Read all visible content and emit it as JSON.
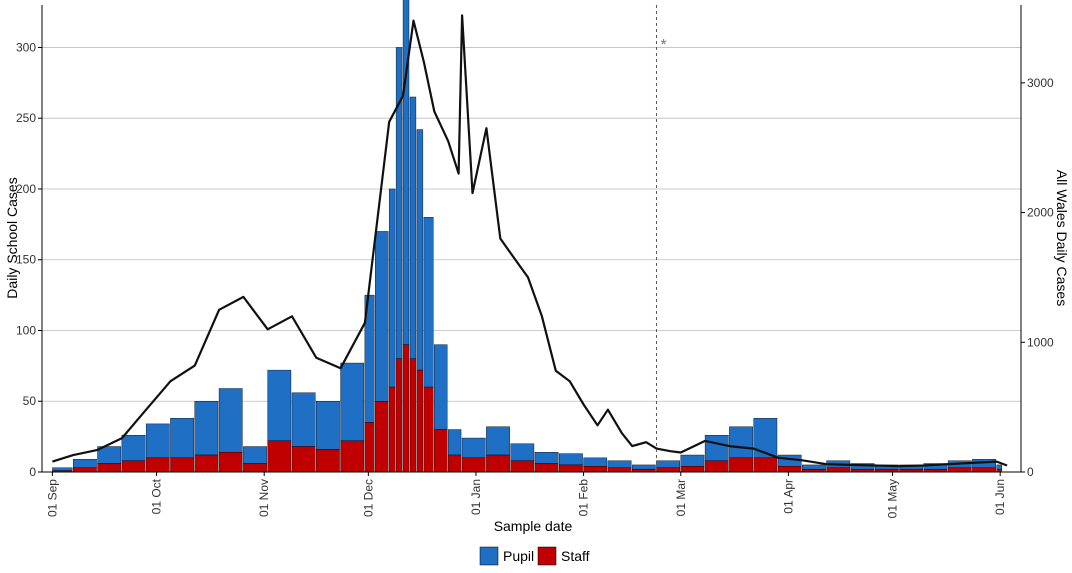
{
  "chart_data": {
    "type": "bar",
    "title": "",
    "xlabel": "Sample date",
    "ylabel": "Daily School Cases",
    "y2label": "All Wales Daily Cases",
    "x_range": [
      "2020-08-29",
      "2021-06-07"
    ],
    "ylim": [
      0,
      330
    ],
    "y2lim": [
      0,
      3600
    ],
    "x_ticks": [
      {
        "date": "2020-09-01",
        "label": "01 Sep"
      },
      {
        "date": "2020-10-01",
        "label": "01 Oct"
      },
      {
        "date": "2020-11-01",
        "label": "01 Nov"
      },
      {
        "date": "2020-12-01",
        "label": "01 Dec"
      },
      {
        "date": "2021-01-01",
        "label": "01 Jan"
      },
      {
        "date": "2021-02-01",
        "label": "01 Feb"
      },
      {
        "date": "2021-03-01",
        "label": "01 Mar"
      },
      {
        "date": "2021-04-01",
        "label": "01 Apr"
      },
      {
        "date": "2021-05-01",
        "label": "01 May"
      },
      {
        "date": "2021-06-01",
        "label": "01 Jun"
      }
    ],
    "y_ticks": [
      "0",
      "50",
      "100",
      "150",
      "200",
      "250",
      "300"
    ],
    "y2_ticks": [
      "0",
      "1000",
      "2000",
      "3000"
    ],
    "grid": "horizontal",
    "legend_position": "bottom",
    "colors": {
      "pupil": "#1f6fc4",
      "staff": "#c00000",
      "line": "#111111",
      "marker_line": "#555555",
      "grid": "#bdbdbd"
    },
    "annotations": [
      {
        "type": "vline",
        "date": "2021-02-22",
        "symbol": "*"
      }
    ],
    "series": [
      {
        "name": "Pupil",
        "kind": "bar-stacked",
        "points": [
          [
            "2020-09-01",
            2
          ],
          [
            "2020-09-07",
            6
          ],
          [
            "2020-09-14",
            12
          ],
          [
            "2020-09-21",
            18
          ],
          [
            "2020-09-28",
            24
          ],
          [
            "2020-10-05",
            28
          ],
          [
            "2020-10-12",
            38
          ],
          [
            "2020-10-19",
            45
          ],
          [
            "2020-10-26",
            12
          ],
          [
            "2020-11-02",
            50
          ],
          [
            "2020-11-09",
            38
          ],
          [
            "2020-11-16",
            34
          ],
          [
            "2020-11-23",
            55
          ],
          [
            "2020-11-30",
            90
          ],
          [
            "2020-12-03",
            120
          ],
          [
            "2020-12-07",
            140
          ],
          [
            "2020-12-09",
            220
          ],
          [
            "2020-12-11",
            310
          ],
          [
            "2020-12-13",
            185
          ],
          [
            "2020-12-15",
            170
          ],
          [
            "2020-12-17",
            120
          ],
          [
            "2020-12-20",
            60
          ],
          [
            "2020-12-24",
            18
          ],
          [
            "2020-12-28",
            14
          ],
          [
            "2021-01-04",
            20
          ],
          [
            "2021-01-11",
            12
          ],
          [
            "2021-01-18",
            8
          ],
          [
            "2021-01-25",
            8
          ],
          [
            "2021-02-01",
            6
          ],
          [
            "2021-02-08",
            5
          ],
          [
            "2021-02-15",
            3
          ],
          [
            "2021-02-22",
            5
          ],
          [
            "2021-03-01",
            8
          ],
          [
            "2021-03-08",
            18
          ],
          [
            "2021-03-15",
            22
          ],
          [
            "2021-03-22",
            28
          ],
          [
            "2021-03-29",
            8
          ],
          [
            "2021-04-05",
            3
          ],
          [
            "2021-04-12",
            5
          ],
          [
            "2021-04-19",
            4
          ],
          [
            "2021-04-26",
            3
          ],
          [
            "2021-05-03",
            3
          ],
          [
            "2021-05-10",
            4
          ],
          [
            "2021-05-17",
            5
          ],
          [
            "2021-05-24",
            6
          ],
          [
            "2021-05-31",
            3
          ]
        ]
      },
      {
        "name": "Staff",
        "kind": "bar-stacked",
        "points": [
          [
            "2020-09-01",
            1
          ],
          [
            "2020-09-07",
            3
          ],
          [
            "2020-09-14",
            6
          ],
          [
            "2020-09-21",
            8
          ],
          [
            "2020-09-28",
            10
          ],
          [
            "2020-10-05",
            10
          ],
          [
            "2020-10-12",
            12
          ],
          [
            "2020-10-19",
            14
          ],
          [
            "2020-10-26",
            6
          ],
          [
            "2020-11-02",
            22
          ],
          [
            "2020-11-09",
            18
          ],
          [
            "2020-11-16",
            16
          ],
          [
            "2020-11-23",
            22
          ],
          [
            "2020-11-30",
            35
          ],
          [
            "2020-12-03",
            50
          ],
          [
            "2020-12-07",
            60
          ],
          [
            "2020-12-09",
            80
          ],
          [
            "2020-12-11",
            90
          ],
          [
            "2020-12-13",
            80
          ],
          [
            "2020-12-15",
            72
          ],
          [
            "2020-12-17",
            60
          ],
          [
            "2020-12-20",
            30
          ],
          [
            "2020-12-24",
            12
          ],
          [
            "2020-12-28",
            10
          ],
          [
            "2021-01-04",
            12
          ],
          [
            "2021-01-11",
            8
          ],
          [
            "2021-01-18",
            6
          ],
          [
            "2021-01-25",
            5
          ],
          [
            "2021-02-01",
            4
          ],
          [
            "2021-02-08",
            3
          ],
          [
            "2021-02-15",
            2
          ],
          [
            "2021-02-22",
            3
          ],
          [
            "2021-03-01",
            4
          ],
          [
            "2021-03-08",
            8
          ],
          [
            "2021-03-15",
            10
          ],
          [
            "2021-03-22",
            10
          ],
          [
            "2021-03-29",
            4
          ],
          [
            "2021-04-05",
            2
          ],
          [
            "2021-04-12",
            3
          ],
          [
            "2021-04-19",
            2
          ],
          [
            "2021-04-26",
            2
          ],
          [
            "2021-05-03",
            2
          ],
          [
            "2021-05-10",
            2
          ],
          [
            "2021-05-17",
            3
          ],
          [
            "2021-05-24",
            3
          ],
          [
            "2021-05-31",
            2
          ]
        ]
      },
      {
        "name": "All Wales",
        "kind": "line",
        "axis": "right",
        "points": [
          [
            "2020-09-01",
            80
          ],
          [
            "2020-09-07",
            130
          ],
          [
            "2020-09-14",
            170
          ],
          [
            "2020-09-21",
            260
          ],
          [
            "2020-09-28",
            480
          ],
          [
            "2020-10-05",
            700
          ],
          [
            "2020-10-12",
            820
          ],
          [
            "2020-10-19",
            1250
          ],
          [
            "2020-10-26",
            1350
          ],
          [
            "2020-11-02",
            1100
          ],
          [
            "2020-11-09",
            1200
          ],
          [
            "2020-11-16",
            880
          ],
          [
            "2020-11-23",
            800
          ],
          [
            "2020-11-30",
            1150
          ],
          [
            "2020-12-07",
            2700
          ],
          [
            "2020-12-11",
            2900
          ],
          [
            "2020-12-14",
            3480
          ],
          [
            "2020-12-17",
            3160
          ],
          [
            "2020-12-20",
            2780
          ],
          [
            "2020-12-24",
            2550
          ],
          [
            "2020-12-27",
            2300
          ],
          [
            "2020-12-28",
            3520
          ],
          [
            "2020-12-31",
            2150
          ],
          [
            "2021-01-04",
            2650
          ],
          [
            "2021-01-08",
            1800
          ],
          [
            "2021-01-12",
            1650
          ],
          [
            "2021-01-16",
            1500
          ],
          [
            "2021-01-20",
            1200
          ],
          [
            "2021-01-24",
            780
          ],
          [
            "2021-01-28",
            700
          ],
          [
            "2021-02-01",
            520
          ],
          [
            "2021-02-05",
            360
          ],
          [
            "2021-02-08",
            480
          ],
          [
            "2021-02-12",
            300
          ],
          [
            "2021-02-15",
            200
          ],
          [
            "2021-02-19",
            230
          ],
          [
            "2021-02-22",
            180
          ],
          [
            "2021-02-26",
            160
          ],
          [
            "2021-03-01",
            150
          ],
          [
            "2021-03-08",
            240
          ],
          [
            "2021-03-15",
            200
          ],
          [
            "2021-03-22",
            180
          ],
          [
            "2021-03-29",
            110
          ],
          [
            "2021-04-05",
            90
          ],
          [
            "2021-04-12",
            60
          ],
          [
            "2021-04-19",
            55
          ],
          [
            "2021-04-26",
            50
          ],
          [
            "2021-05-03",
            45
          ],
          [
            "2021-05-10",
            50
          ],
          [
            "2021-05-17",
            60
          ],
          [
            "2021-05-24",
            70
          ],
          [
            "2021-05-31",
            80
          ],
          [
            "2021-06-03",
            50
          ]
        ]
      }
    ]
  }
}
